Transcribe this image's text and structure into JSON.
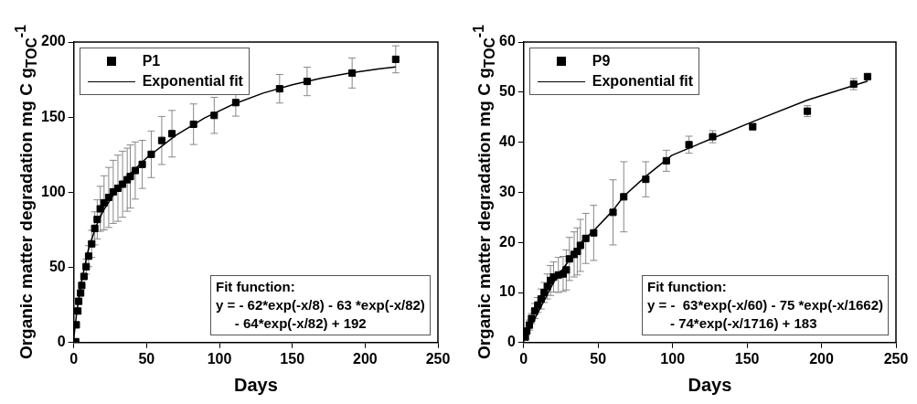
{
  "chart_data": [
    {
      "type": "scatter",
      "xlabel": "Days",
      "ylabel": "Organic matter degradation mg C g$_{TOC}$$^{-1}$",
      "xlim": [
        0,
        250
      ],
      "xticks": [
        0,
        50,
        100,
        150,
        200,
        250
      ],
      "ylim": [
        0,
        200
      ],
      "yticks": [
        0,
        50,
        100,
        150,
        200
      ],
      "grid": false,
      "legend": "top left",
      "marker": "square",
      "annotations": [
        "Fit function:\ny = - 62*exp(-x/8) - 63 *exp(-x/82)\n     - 64*exp(-x/82) + 192"
      ],
      "series": [
        {
          "name": "P1",
          "type": "scatter",
          "color": "#000000",
          "x": [
            1.3,
            1.7,
            2.8,
            3.4,
            4.7,
            5.5,
            7,
            8.5,
            10.2,
            12.3,
            14.4,
            16.1,
            18.2,
            20.8,
            24,
            27.1,
            30.3,
            33.5,
            36.7,
            38.8,
            42.2,
            47,
            53.2,
            60.4,
            67.4,
            82.2,
            96.4,
            111.2,
            141.3,
            160.2,
            191.1,
            221
          ],
          "values": [
            0.6,
            11.8,
            21,
            27.5,
            33,
            38,
            44,
            50.5,
            57.5,
            65.7,
            76,
            82,
            89,
            93,
            96.6,
            100.3,
            102.7,
            105.4,
            108.4,
            110.5,
            114.5,
            118.6,
            125.3,
            134.5,
            139,
            145.3,
            151.2,
            159.7,
            168.9,
            173.8,
            179.4,
            188.5
          ],
          "errors": [
            null,
            null,
            null,
            null,
            null,
            null,
            null,
            5,
            7,
            9,
            11,
            13,
            15,
            18,
            20,
            21,
            22,
            22,
            21,
            21,
            19,
            16,
            15.5,
            16,
            15.5,
            13.5,
            12,
            9,
            9.5,
            9.5,
            10,
            9
          ]
        },
        {
          "name": "Exponential fit",
          "type": "line",
          "marker": "none",
          "color": "#000000",
          "x": [
            0,
            2,
            5,
            10,
            15,
            20,
            30,
            40,
            50,
            70,
            90,
            110,
            130,
            150,
            170,
            190,
            210,
            221
          ],
          "values": [
            3,
            19.8,
            39.3,
            61.8,
            76.7,
            87.4,
            102.4,
            113.6,
            122.9,
            137.9,
            149.6,
            158.8,
            166,
            171.6,
            176,
            179.5,
            182.2,
            183.4
          ]
        }
      ]
    },
    {
      "type": "scatter",
      "xlabel": "Days",
      "ylabel": "Organic matter degradation mg C g$_{TOC}$$^{-1}$",
      "xlim": [
        0,
        250
      ],
      "xticks": [
        0,
        50,
        100,
        150,
        200,
        250
      ],
      "ylim": [
        0,
        60
      ],
      "yticks": [
        0,
        10,
        20,
        30,
        40,
        50,
        60
      ],
      "grid": false,
      "legend": "top left",
      "marker": "square",
      "annotations": [
        "Fit function:\ny = -  63*exp(-x/60) - 75 *exp(-x/1662)\n      - 74*exp(-x/1716) + 183"
      ],
      "series": [
        {
          "name": "P9",
          "type": "scatter",
          "color": "#000000",
          "x": [
            1.1,
            2.1,
            3.8,
            5.3,
            7.4,
            9.5,
            11.7,
            13.8,
            15.9,
            18,
            20.1,
            23.3,
            26.5,
            28.6,
            30.7,
            33.9,
            36,
            38.1,
            41.7,
            47,
            60,
            67.2,
            82,
            95.8,
            111,
            126.9,
            153.8,
            190.5,
            221.6,
            230.9
          ],
          "values": [
            1.1,
            2.3,
            3.5,
            4.8,
            6.3,
            7.5,
            8.7,
            10,
            11.2,
            12.4,
            13.1,
            13.5,
            13.7,
            14.5,
            16.7,
            17.6,
            18.2,
            19.4,
            20.8,
            21.9,
            26,
            29.1,
            32.6,
            36.3,
            39.5,
            41.1,
            43.1,
            46.2,
            51.6,
            53.1
          ],
          "errors": [
            null,
            null,
            1,
            1,
            1.5,
            1.5,
            2,
            2,
            2.5,
            3,
            3,
            3.5,
            3.5,
            4,
            4.3,
            4.5,
            4.7,
            5.2,
            5,
            5.5,
            6.5,
            7,
            3.5,
            2.1,
            1.7,
            1.2,
            0.6,
            1.1,
            1.1,
            0.5
          ]
        },
        {
          "name": "Exponential fit",
          "type": "line",
          "marker": "none",
          "color": "#000000",
          "x": [
            0,
            20,
            40,
            46.6,
            60,
            67.2,
            82,
            99.6,
            126.9,
            153.8,
            190.5,
            231
          ],
          "values": [
            0.5,
            12,
            20.5,
            22.2,
            26.4,
            29.2,
            33.2,
            37.4,
            40.8,
            44.1,
            48.4,
            52.2
          ]
        }
      ]
    }
  ]
}
